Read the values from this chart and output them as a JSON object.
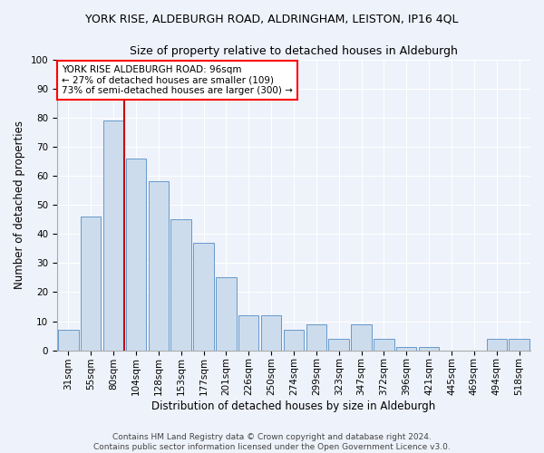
{
  "title": "YORK RISE, ALDEBURGH ROAD, ALDRINGHAM, LEISTON, IP16 4QL",
  "subtitle": "Size of property relative to detached houses in Aldeburgh",
  "xlabel": "Distribution of detached houses by size in Aldeburgh",
  "ylabel": "Number of detached properties",
  "categories": [
    "31sqm",
    "55sqm",
    "80sqm",
    "104sqm",
    "128sqm",
    "153sqm",
    "177sqm",
    "201sqm",
    "226sqm",
    "250sqm",
    "274sqm",
    "299sqm",
    "323sqm",
    "347sqm",
    "372sqm",
    "396sqm",
    "421sqm",
    "445sqm",
    "469sqm",
    "494sqm",
    "518sqm"
  ],
  "values": [
    7,
    46,
    79,
    66,
    58,
    45,
    37,
    25,
    12,
    12,
    7,
    9,
    4,
    9,
    4,
    1,
    1,
    0,
    0,
    4,
    4
  ],
  "bar_color": "#ccdcec",
  "bar_edge_color": "#6699cc",
  "red_line_x": 2.5,
  "annotation_text": "YORK RISE ALDEBURGH ROAD: 96sqm\n← 27% of detached houses are smaller (109)\n73% of semi-detached houses are larger (300) →",
  "annotation_box_color": "white",
  "annotation_box_edge_color": "red",
  "red_line_color": "#cc0000",
  "ylim": [
    0,
    100
  ],
  "yticks": [
    0,
    10,
    20,
    30,
    40,
    50,
    60,
    70,
    80,
    90,
    100
  ],
  "background_color": "#eef2fa",
  "footer_text": "Contains HM Land Registry data © Crown copyright and database right 2024.\nContains public sector information licensed under the Open Government Licence v3.0.",
  "title_fontsize": 9,
  "subtitle_fontsize": 9,
  "xlabel_fontsize": 8.5,
  "ylabel_fontsize": 8.5,
  "tick_fontsize": 7.5,
  "annotation_fontsize": 7.5,
  "footer_fontsize": 6.5
}
